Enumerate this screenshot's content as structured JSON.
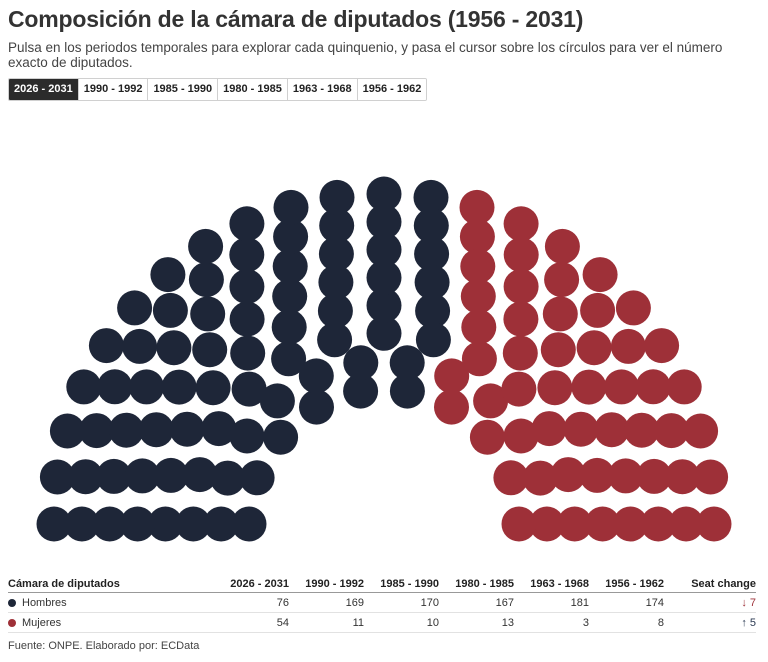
{
  "header": {
    "title": "Composición de la cámara de diputados (1956 - 2031)",
    "subtitle": "Pulsa en los periodos temporales para explorar cada quinquenio, y pasa el cursor sobre los círculos para ver el número exacto de diputados."
  },
  "tabs": [
    {
      "label": "2026 - 2031",
      "active": true
    },
    {
      "label": "1990 - 1992",
      "active": false
    },
    {
      "label": "1985 - 1990",
      "active": false
    },
    {
      "label": "1980 - 1985",
      "active": false
    },
    {
      "label": "1963 - 1968",
      "active": false
    },
    {
      "label": "1956 - 1962",
      "active": false
    }
  ],
  "chart_data": {
    "type": "parliament",
    "period": "2026 - 2031",
    "total_seats": 130,
    "series": [
      {
        "name": "Hombres",
        "value": 76,
        "color": "#1e2638"
      },
      {
        "name": "Mujeres",
        "value": 54,
        "color": "#9e3038"
      }
    ]
  },
  "table": {
    "headers": [
      "Cámara de diputados",
      "2026 - 2031",
      "1990 - 1992",
      "1985 - 1990",
      "1980 - 1985",
      "1963 - 1968",
      "1956 - 1962",
      "Seat change"
    ],
    "rows": [
      {
        "label": "Hombres",
        "color": "#1e2638",
        "values": [
          "76",
          "169",
          "170",
          "167",
          "181",
          "174"
        ],
        "change": "↓ 7"
      },
      {
        "label": "Mujeres",
        "color": "#9e3038",
        "values": [
          "54",
          "11",
          "10",
          "13",
          "3",
          "8"
        ],
        "change": "↑ 5"
      }
    ]
  },
  "source": "Fuente: ONPE. Elaborado por: ECData"
}
